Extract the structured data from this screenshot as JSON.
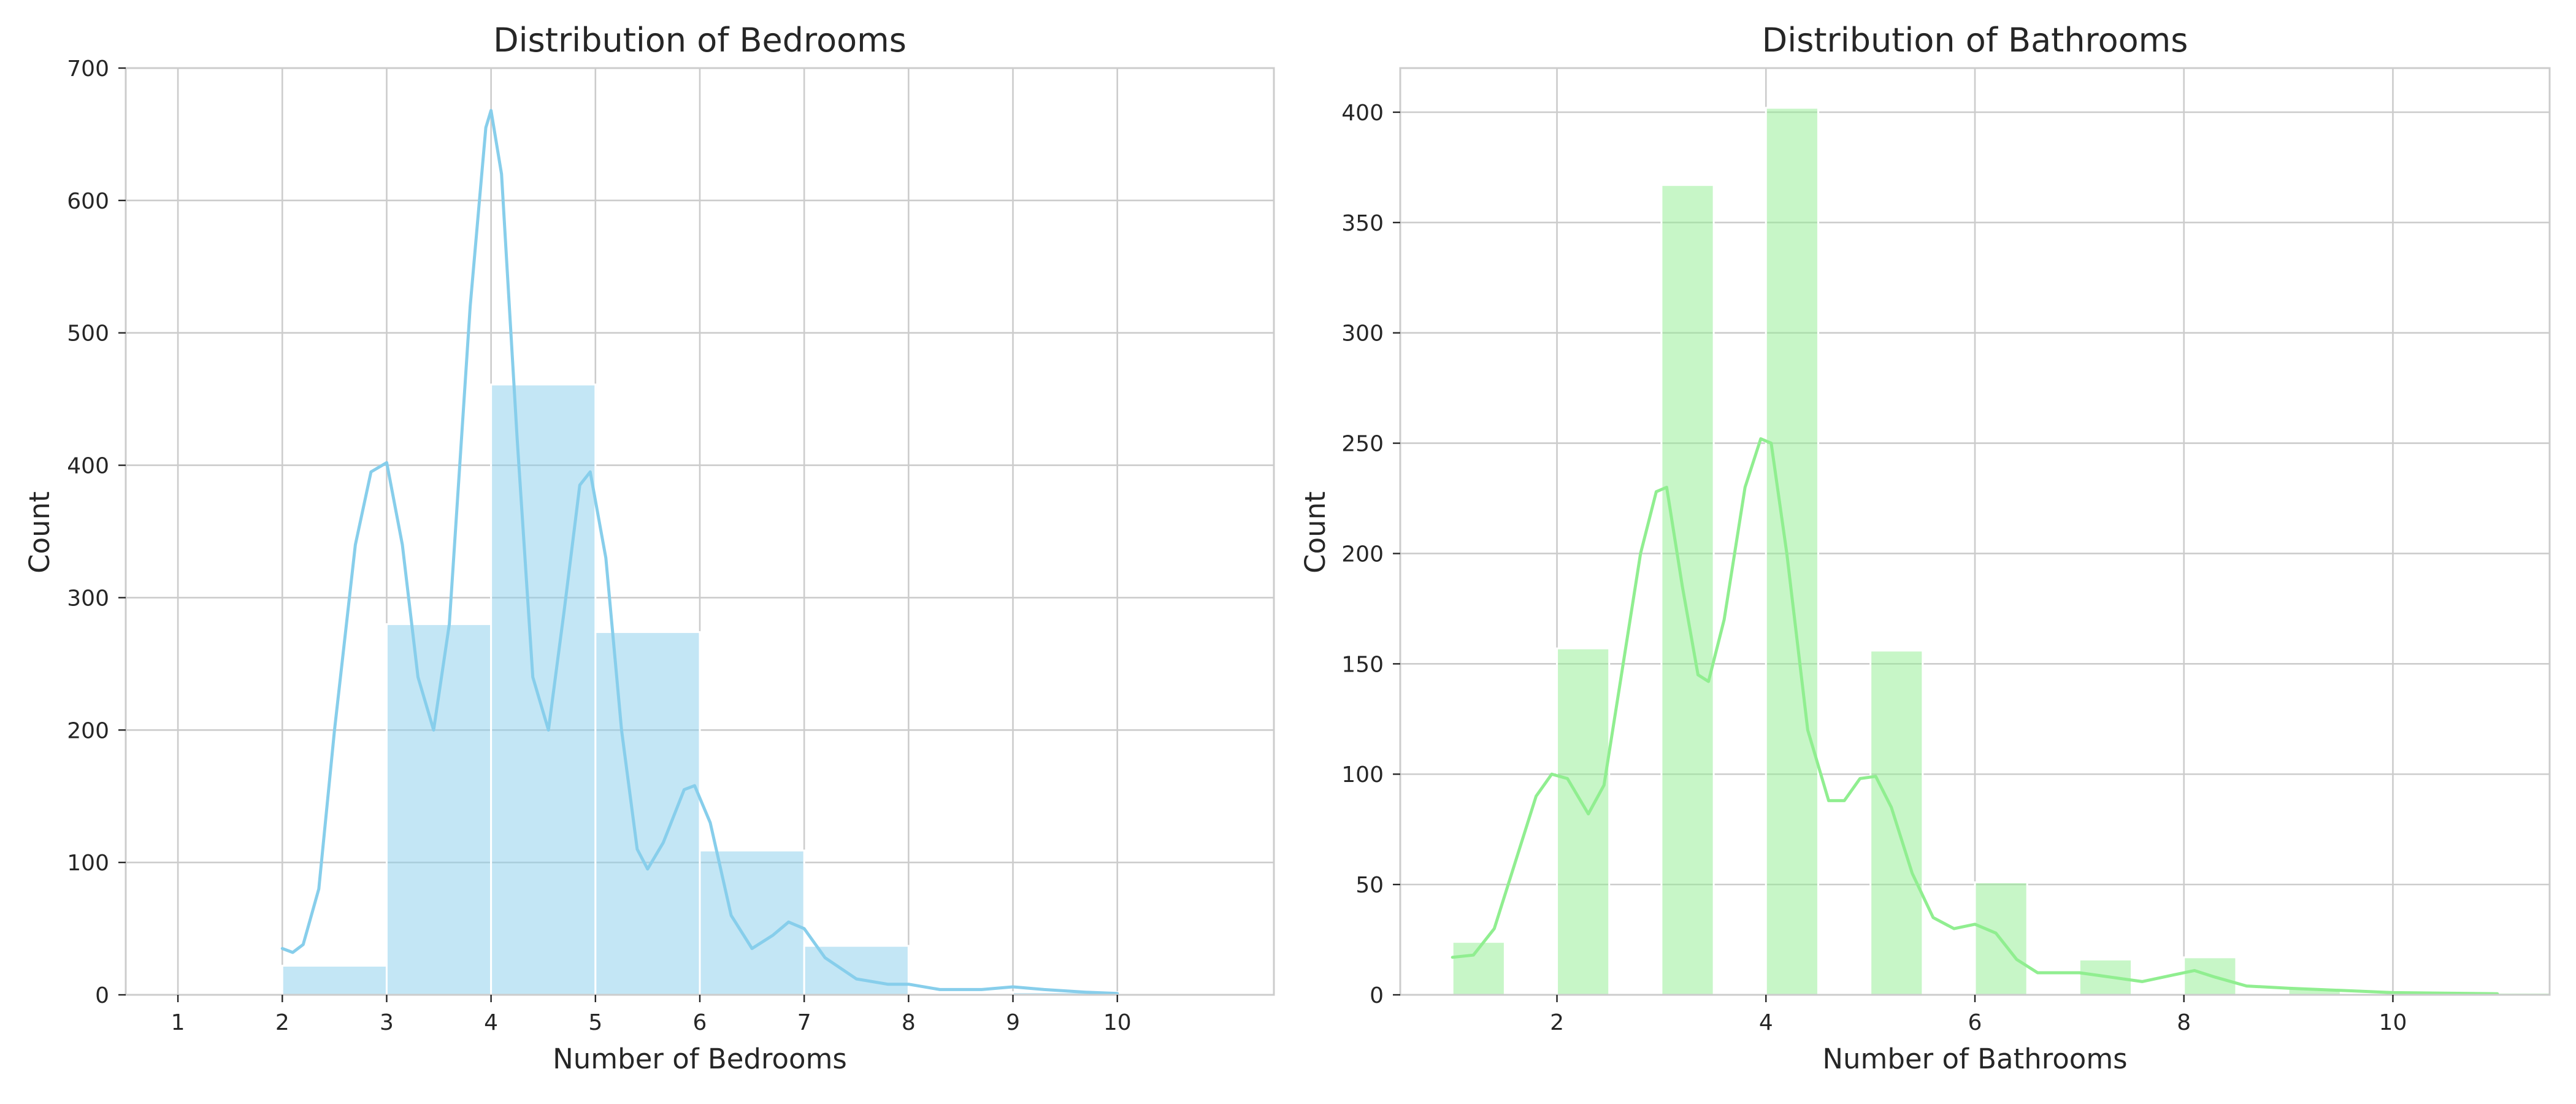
{
  "chart_data": [
    {
      "type": "bar",
      "subtype": "histogram",
      "title": "Distribution of Bedrooms",
      "xlabel": "Number of Bedrooms",
      "ylabel": "Count",
      "xlim": [
        0.5,
        11.5
      ],
      "ylim": [
        0,
        700
      ],
      "xticks": [
        1,
        2,
        3,
        4,
        5,
        6,
        7,
        8,
        9,
        10
      ],
      "yticks": [
        0,
        100,
        200,
        300,
        400,
        500,
        600,
        700
      ],
      "grid": true,
      "colors": {
        "bar": "#87ceeb",
        "line": "#87ceeb"
      },
      "bins": [
        {
          "start": 2,
          "end": 3,
          "count": 22
        },
        {
          "start": 3,
          "end": 4,
          "count": 280
        },
        {
          "start": 4,
          "end": 5,
          "count": 461
        },
        {
          "start": 5,
          "end": 6,
          "count": 274
        },
        {
          "start": 6,
          "end": 7,
          "count": 109
        },
        {
          "start": 7,
          "end": 8,
          "count": 37
        },
        {
          "start": 8,
          "end": 9,
          "count": 1
        },
        {
          "start": 9,
          "end": 10,
          "count": 2
        },
        {
          "start": 10,
          "end": 11,
          "count": 1
        }
      ],
      "kde": [
        [
          2,
          35
        ],
        [
          2.1,
          32
        ],
        [
          2.2,
          38
        ],
        [
          2.35,
          80
        ],
        [
          2.5,
          200
        ],
        [
          2.7,
          340
        ],
        [
          2.85,
          395
        ],
        [
          3,
          402
        ],
        [
          3.15,
          340
        ],
        [
          3.3,
          240
        ],
        [
          3.45,
          200
        ],
        [
          3.6,
          280
        ],
        [
          3.8,
          520
        ],
        [
          3.95,
          655
        ],
        [
          4,
          668
        ],
        [
          4.1,
          620
        ],
        [
          4.25,
          420
        ],
        [
          4.4,
          240
        ],
        [
          4.55,
          200
        ],
        [
          4.7,
          290
        ],
        [
          4.85,
          385
        ],
        [
          4.95,
          395
        ],
        [
          5.1,
          330
        ],
        [
          5.25,
          200
        ],
        [
          5.4,
          110
        ],
        [
          5.5,
          95
        ],
        [
          5.65,
          115
        ],
        [
          5.85,
          155
        ],
        [
          5.95,
          158
        ],
        [
          6.1,
          130
        ],
        [
          6.3,
          60
        ],
        [
          6.5,
          35
        ],
        [
          6.7,
          45
        ],
        [
          6.85,
          55
        ],
        [
          7,
          50
        ],
        [
          7.2,
          28
        ],
        [
          7.5,
          12
        ],
        [
          7.8,
          8
        ],
        [
          8,
          8
        ],
        [
          8.3,
          4
        ],
        [
          8.7,
          4
        ],
        [
          9,
          6
        ],
        [
          9.3,
          4
        ],
        [
          9.7,
          2
        ],
        [
          10,
          1
        ]
      ]
    },
    {
      "type": "bar",
      "subtype": "histogram",
      "title": "Distribution of Bathrooms",
      "xlabel": "Number of Bathrooms",
      "ylabel": "Count",
      "xlim": [
        0.5,
        11.5
      ],
      "ylim": [
        0,
        420
      ],
      "xticks": [
        2,
        4,
        6,
        8,
        10
      ],
      "yticks": [
        0,
        50,
        100,
        150,
        200,
        250,
        300,
        350,
        400
      ],
      "grid": true,
      "colors": {
        "bar": "#90ee90",
        "line": "#90ee90"
      },
      "bins": [
        {
          "start": 1,
          "end": 1.5,
          "count": 24
        },
        {
          "start": 2,
          "end": 2.5,
          "count": 157
        },
        {
          "start": 3,
          "end": 3.5,
          "count": 367
        },
        {
          "start": 4,
          "end": 4.5,
          "count": 402
        },
        {
          "start": 5,
          "end": 5.5,
          "count": 156
        },
        {
          "start": 6,
          "end": 6.5,
          "count": 51
        },
        {
          "start": 7,
          "end": 7.5,
          "count": 16
        },
        {
          "start": 8,
          "end": 8.5,
          "count": 17
        },
        {
          "start": 9,
          "end": 9.5,
          "count": 3
        },
        {
          "start": 10,
          "end": 10.5,
          "count": 1
        },
        {
          "start": 11,
          "end": 11.5,
          "count": 1
        }
      ],
      "kde": [
        [
          1,
          17
        ],
        [
          1.2,
          18
        ],
        [
          1.4,
          30
        ],
        [
          1.6,
          60
        ],
        [
          1.8,
          90
        ],
        [
          1.95,
          100
        ],
        [
          2.1,
          98
        ],
        [
          2.3,
          82
        ],
        [
          2.45,
          95
        ],
        [
          2.6,
          140
        ],
        [
          2.8,
          200
        ],
        [
          2.95,
          228
        ],
        [
          3.05,
          230
        ],
        [
          3.2,
          185
        ],
        [
          3.35,
          145
        ],
        [
          3.45,
          142
        ],
        [
          3.6,
          170
        ],
        [
          3.8,
          230
        ],
        [
          3.95,
          252
        ],
        [
          4.05,
          250
        ],
        [
          4.2,
          200
        ],
        [
          4.4,
          120
        ],
        [
          4.6,
          88
        ],
        [
          4.75,
          88
        ],
        [
          4.9,
          98
        ],
        [
          5.05,
          99
        ],
        [
          5.2,
          85
        ],
        [
          5.4,
          55
        ],
        [
          5.6,
          35
        ],
        [
          5.8,
          30
        ],
        [
          6,
          32
        ],
        [
          6.2,
          28
        ],
        [
          6.4,
          16
        ],
        [
          6.6,
          10
        ],
        [
          6.8,
          10
        ],
        [
          7,
          10
        ],
        [
          7.3,
          8
        ],
        [
          7.6,
          6
        ],
        [
          7.9,
          9
        ],
        [
          8.1,
          11
        ],
        [
          8.3,
          8
        ],
        [
          8.6,
          4
        ],
        [
          9,
          3
        ],
        [
          9.5,
          2
        ],
        [
          10,
          1
        ],
        [
          11,
          0.5
        ]
      ]
    }
  ]
}
